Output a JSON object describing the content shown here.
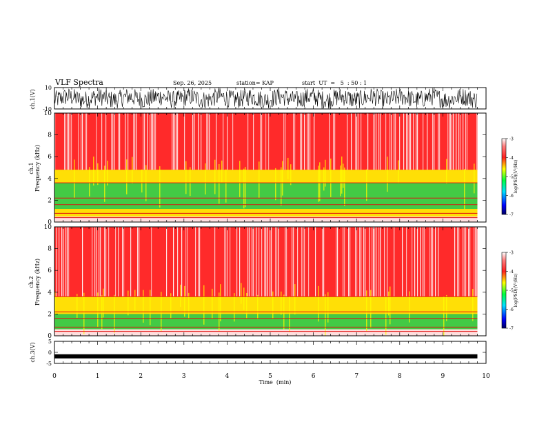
{
  "header": {
    "title": "VLF Spectra",
    "date": "Sep. 26, 2025",
    "station": "station= KAP",
    "start": "start  UT  =   5  : 50 : 1"
  },
  "chart_data": [
    {
      "type": "line",
      "name": "ch1-waveform",
      "ylabel": "ch.1(V)",
      "ylim": [
        -10,
        10
      ],
      "yticks": [
        "10",
        "-10"
      ],
      "xlim": [
        0,
        10
      ],
      "description_values": "noisy waveform mostly between -8 and 8 V"
    },
    {
      "type": "heatmap",
      "name": "ch1-spectrogram",
      "ylabel_top": "ch.1",
      "ylabel": "Frequency  (kHz)",
      "ylim": [
        0,
        10
      ],
      "yticks": [
        "0",
        "2",
        "4",
        "6",
        "8",
        "10"
      ],
      "xlim": [
        0,
        10
      ],
      "colorbar": {
        "label": "log(PSD)(V²/Hz)",
        "range": [
          -7,
          -3
        ],
        "ticks": [
          "-3",
          "-4",
          "-5",
          "-6",
          "-7"
        ]
      },
      "bands": [
        {
          "from": 4.8,
          "to": 10,
          "level": -3.6
        },
        {
          "from": 3.6,
          "to": 4.8,
          "level": -4.3
        },
        {
          "from": 1.2,
          "to": 3.6,
          "level": -5.0
        },
        {
          "from": 0.5,
          "to": 1.2,
          "level": -4.2
        },
        {
          "from": 0,
          "to": 0.5,
          "level": -3.2
        }
      ]
    },
    {
      "type": "heatmap",
      "name": "ch2-spectrogram",
      "ylabel_top": "ch.2",
      "ylabel": "Frequency  (kHz)",
      "ylim": [
        0,
        10
      ],
      "yticks": [
        "0",
        "2",
        "4",
        "6",
        "8",
        "10"
      ],
      "xlim": [
        0,
        10
      ],
      "colorbar": {
        "label": "log(PSD)(V²/Hz)",
        "range": [
          -7,
          -3
        ],
        "ticks": [
          "-3",
          "-4",
          "-5",
          "-6",
          "-7"
        ]
      },
      "bands": [
        {
          "from": 3.6,
          "to": 10,
          "level": -3.7
        },
        {
          "from": 2.0,
          "to": 3.6,
          "level": -4.6
        },
        {
          "from": 0.6,
          "to": 2.0,
          "level": -5.3
        },
        {
          "from": 0,
          "to": 0.6,
          "level": -3.4
        }
      ]
    },
    {
      "type": "line",
      "name": "ch3-waveform",
      "ylabel": "ch.3(V)",
      "ylim": [
        -5,
        5
      ],
      "yticks": [
        "5",
        "0",
        "-5"
      ],
      "xlim": [
        0,
        10
      ],
      "level": -1.8
    }
  ],
  "xaxis": {
    "label": "Time  (min)",
    "ticks": [
      "0",
      "1",
      "2",
      "3",
      "4",
      "5",
      "6",
      "7",
      "8",
      "9",
      "10"
    ],
    "data_end": 9.8
  },
  "colors": {
    "high": "#ff2a2a",
    "mid": "#ffff00",
    "low": "#22e64a",
    "white": "#ffffff"
  }
}
